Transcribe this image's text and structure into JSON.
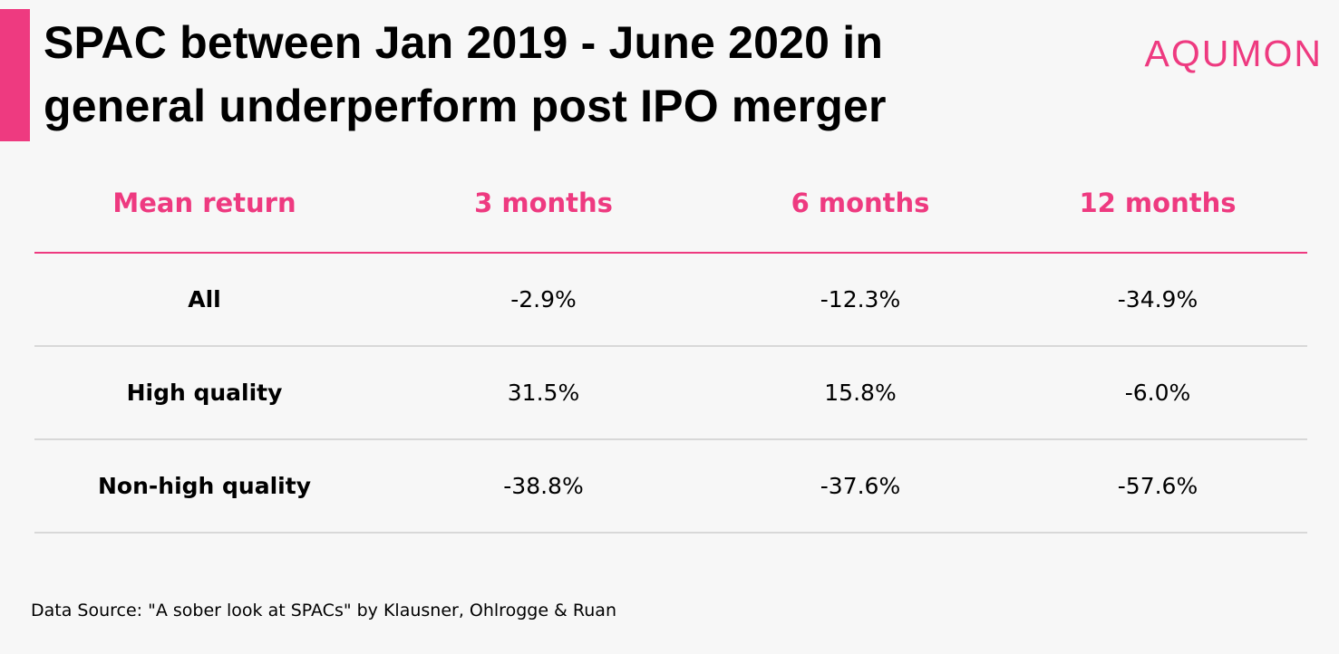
{
  "colors": {
    "accent": "#ee3a80",
    "text": "#000000",
    "background": "#f7f7f7",
    "divider": "#d8d8d8"
  },
  "title": {
    "line1": "SPAC between Jan 2019 - June 2020 in",
    "line2": "general underperform post IPO merger"
  },
  "logo": "AQUMON",
  "chart_data": {
    "type": "table",
    "columns": [
      "Mean return",
      "3 months",
      "6 months",
      "12 months"
    ],
    "rows": [
      {
        "label": "All",
        "values": [
          "-2.9%",
          "-12.3%",
          "-34.9%"
        ]
      },
      {
        "label": "High quality",
        "values": [
          "31.5%",
          "15.8%",
          "-6.0%"
        ]
      },
      {
        "label": "Non-high quality",
        "values": [
          "-38.8%",
          "-37.6%",
          "-57.6%"
        ]
      }
    ]
  },
  "source": "Data Source: \"A sober look at SPACs\" by Klausner, Ohlrogge & Ruan"
}
